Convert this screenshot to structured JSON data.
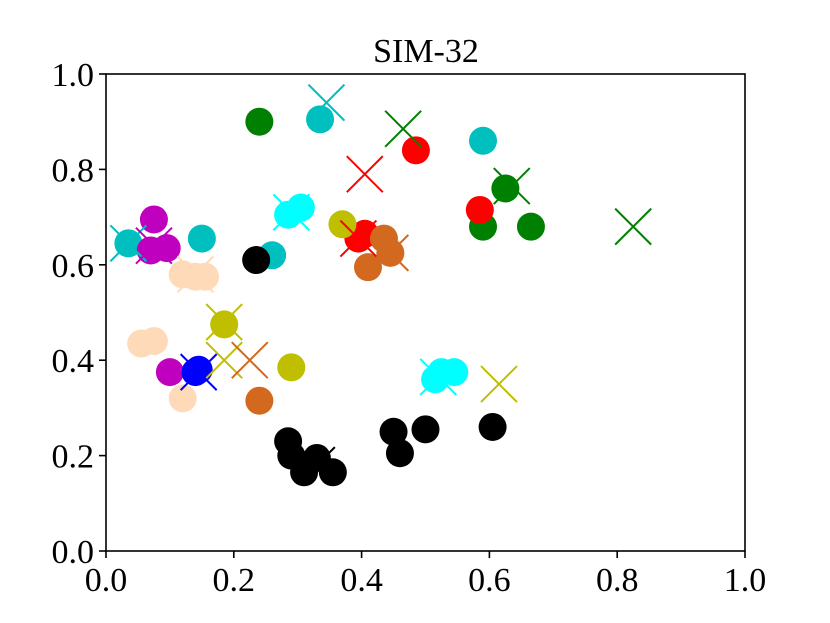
{
  "chart_data": {
    "type": "scatter",
    "title": "SIM-32",
    "xlabel": "",
    "ylabel": "",
    "xlim": [
      0.0,
      1.0
    ],
    "ylim": [
      0.0,
      1.0
    ],
    "xticks": [
      "0.0",
      "0.2",
      "0.4",
      "0.6",
      "0.8",
      "1.0"
    ],
    "yticks": [
      "0.0",
      "0.2",
      "0.4",
      "0.6",
      "0.8",
      "1.0"
    ],
    "grid": false,
    "legend": "none",
    "groups": [
      {
        "color": "#008000",
        "points": [
          [
            0.24,
            0.9
          ],
          [
            0.59,
            0.68
          ],
          [
            0.625,
            0.76
          ],
          [
            0.665,
            0.68
          ]
        ],
        "markers": [
          [
            0.465,
            0.885
          ],
          [
            0.635,
            0.765
          ],
          [
            0.825,
            0.68
          ]
        ],
        "centroid": null
      },
      {
        "color": "#00bfbf",
        "points": [
          [
            0.335,
            0.905
          ],
          [
            0.59,
            0.86
          ],
          [
            0.15,
            0.655
          ],
          [
            0.035,
            0.645
          ],
          [
            0.26,
            0.62
          ]
        ],
        "markers": [
          [
            0.345,
            0.94
          ],
          [
            0.035,
            0.645
          ]
        ],
        "centroid": null
      },
      {
        "color": "#ff0000",
        "points": [
          [
            0.485,
            0.84
          ],
          [
            0.585,
            0.715
          ],
          [
            0.395,
            0.655
          ],
          [
            0.405,
            0.665
          ]
        ],
        "markers": [
          [
            0.395,
            0.655
          ]
        ],
        "centroid": [
          0.405,
          0.79
        ]
      },
      {
        "color": "#00ffff",
        "points": [
          [
            0.305,
            0.72
          ],
          [
            0.285,
            0.705
          ],
          [
            0.515,
            0.36
          ],
          [
            0.525,
            0.375
          ],
          [
            0.545,
            0.375
          ]
        ],
        "markers": [
          [
            0.29,
            0.71
          ],
          [
            0.52,
            0.365
          ]
        ],
        "centroid": null
      },
      {
        "color": "#bfbf00",
        "points": [
          [
            0.37,
            0.685
          ],
          [
            0.29,
            0.385
          ],
          [
            0.185,
            0.475
          ]
        ],
        "markers": [
          [
            0.185,
            0.48
          ],
          [
            0.615,
            0.35
          ]
        ],
        "centroid": [
          0.185,
          0.4
        ]
      },
      {
        "color": "#d2691e",
        "points": [
          [
            0.435,
            0.655
          ],
          [
            0.41,
            0.595
          ],
          [
            0.445,
            0.625
          ],
          [
            0.24,
            0.315
          ]
        ],
        "markers": [
          [
            0.445,
            0.625
          ]
        ],
        "centroid": [
          0.225,
          0.4
        ]
      },
      {
        "color": "#000000",
        "points": [
          [
            0.235,
            0.61
          ],
          [
            0.285,
            0.23
          ],
          [
            0.29,
            0.2
          ],
          [
            0.31,
            0.165
          ],
          [
            0.33,
            0.195
          ],
          [
            0.355,
            0.165
          ],
          [
            0.45,
            0.25
          ],
          [
            0.46,
            0.205
          ],
          [
            0.5,
            0.255
          ],
          [
            0.605,
            0.26
          ]
        ],
        "markers": [
          [
            0.33,
            0.18
          ]
        ],
        "centroid": null
      },
      {
        "color": "#bf00bf",
        "points": [
          [
            0.075,
            0.695
          ],
          [
            0.07,
            0.63
          ],
          [
            0.095,
            0.635
          ],
          [
            0.1,
            0.375
          ]
        ],
        "markers": [
          [
            0.075,
            0.64
          ]
        ],
        "centroid": null
      },
      {
        "color": "#ffdab9",
        "points": [
          [
            0.12,
            0.58
          ],
          [
            0.14,
            0.575
          ],
          [
            0.155,
            0.575
          ],
          [
            0.055,
            0.435
          ],
          [
            0.075,
            0.44
          ],
          [
            0.12,
            0.32
          ]
        ],
        "markers": [
          [
            0.14,
            0.58
          ]
        ],
        "centroid": null
      },
      {
        "color": "#0000ff",
        "points": [
          [
            0.14,
            0.375
          ],
          [
            0.145,
            0.38
          ]
        ],
        "markers": [
          [
            0.145,
            0.375
          ]
        ],
        "centroid": null
      }
    ]
  }
}
